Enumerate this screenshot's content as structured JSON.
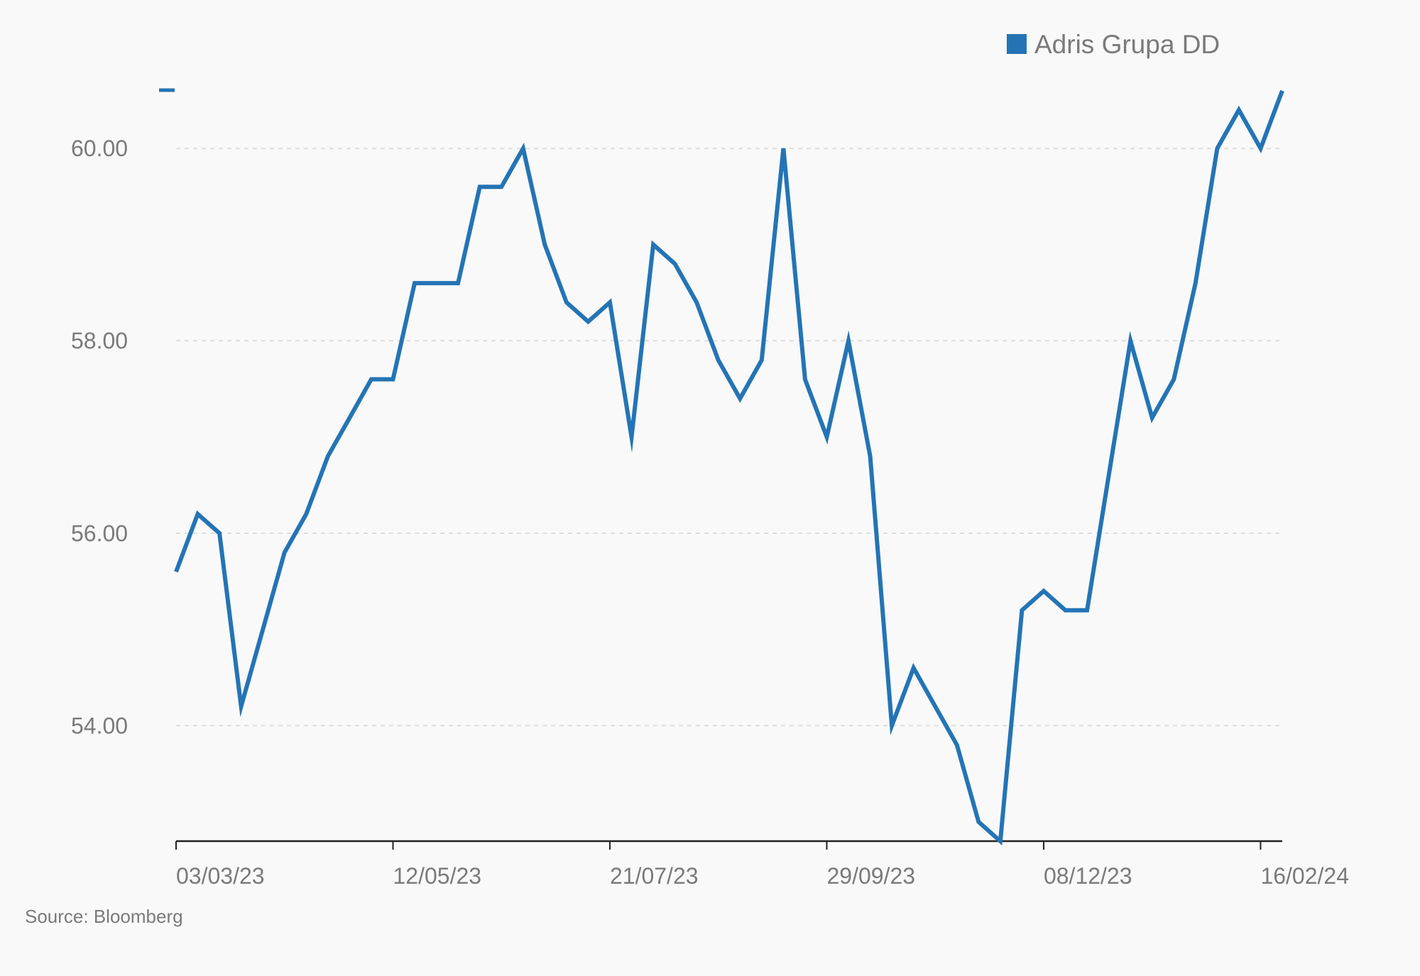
{
  "chart_data": {
    "type": "line",
    "legend": {
      "position": "top-right",
      "entries": [
        "Adris Grupa DD"
      ]
    },
    "source": "Source: Bloomberg",
    "x_tick_labels": [
      "03/03/23",
      "12/05/23",
      "21/07/23",
      "29/09/23",
      "08/12/23",
      "16/02/24"
    ],
    "y_tick_labels": [
      "54.00",
      "56.00",
      "58.00",
      "60.00"
    ],
    "y_ticks": [
      54,
      56,
      58,
      60
    ],
    "ylim": [
      52.8,
      61.1
    ],
    "grid": "horizontal dashed",
    "colors": {
      "series": "#2474b5",
      "grid": "#d6d6d6",
      "axis": "#222222",
      "text": "#7a7a7a",
      "background": "#f9f9f9"
    },
    "series": [
      {
        "name": "Adris Grupa DD",
        "x": [
          "03/03/23",
          "10/03/23",
          "17/03/23",
          "24/03/23",
          "31/03/23",
          "07/04/23",
          "14/04/23",
          "21/04/23",
          "28/04/23",
          "05/05/23",
          "12/05/23",
          "19/05/23",
          "26/05/23",
          "02/06/23",
          "09/06/23",
          "16/06/23",
          "23/06/23",
          "30/06/23",
          "07/07/23",
          "14/07/23",
          "21/07/23",
          "28/07/23",
          "04/08/23",
          "11/08/23",
          "18/08/23",
          "25/08/23",
          "01/09/23",
          "08/09/23",
          "15/09/23",
          "22/09/23",
          "29/09/23",
          "06/10/23",
          "13/10/23",
          "20/10/23",
          "27/10/23",
          "03/11/23",
          "10/11/23",
          "17/11/23",
          "24/11/23",
          "01/12/23",
          "08/12/23",
          "15/12/23",
          "22/12/23",
          "29/12/23",
          "05/01/24",
          "12/01/24",
          "19/01/24",
          "26/01/24",
          "02/02/24",
          "09/02/24",
          "16/02/24",
          "23/02/24"
        ],
        "values": [
          55.6,
          56.2,
          56.0,
          54.2,
          55.0,
          55.8,
          56.2,
          56.8,
          57.2,
          57.6,
          57.6,
          58.6,
          58.6,
          58.6,
          59.6,
          59.6,
          60.0,
          59.0,
          58.4,
          58.2,
          58.4,
          57.0,
          59.0,
          58.8,
          58.4,
          57.8,
          57.4,
          57.8,
          60.0,
          57.6,
          57.0,
          58.0,
          56.8,
          54.0,
          54.6,
          54.2,
          53.8,
          53.0,
          52.8,
          55.2,
          55.4,
          55.2,
          55.2,
          56.6,
          58.0,
          57.2,
          57.6,
          58.6,
          60.0,
          60.4,
          60.0,
          60.6
        ]
      }
    ]
  }
}
